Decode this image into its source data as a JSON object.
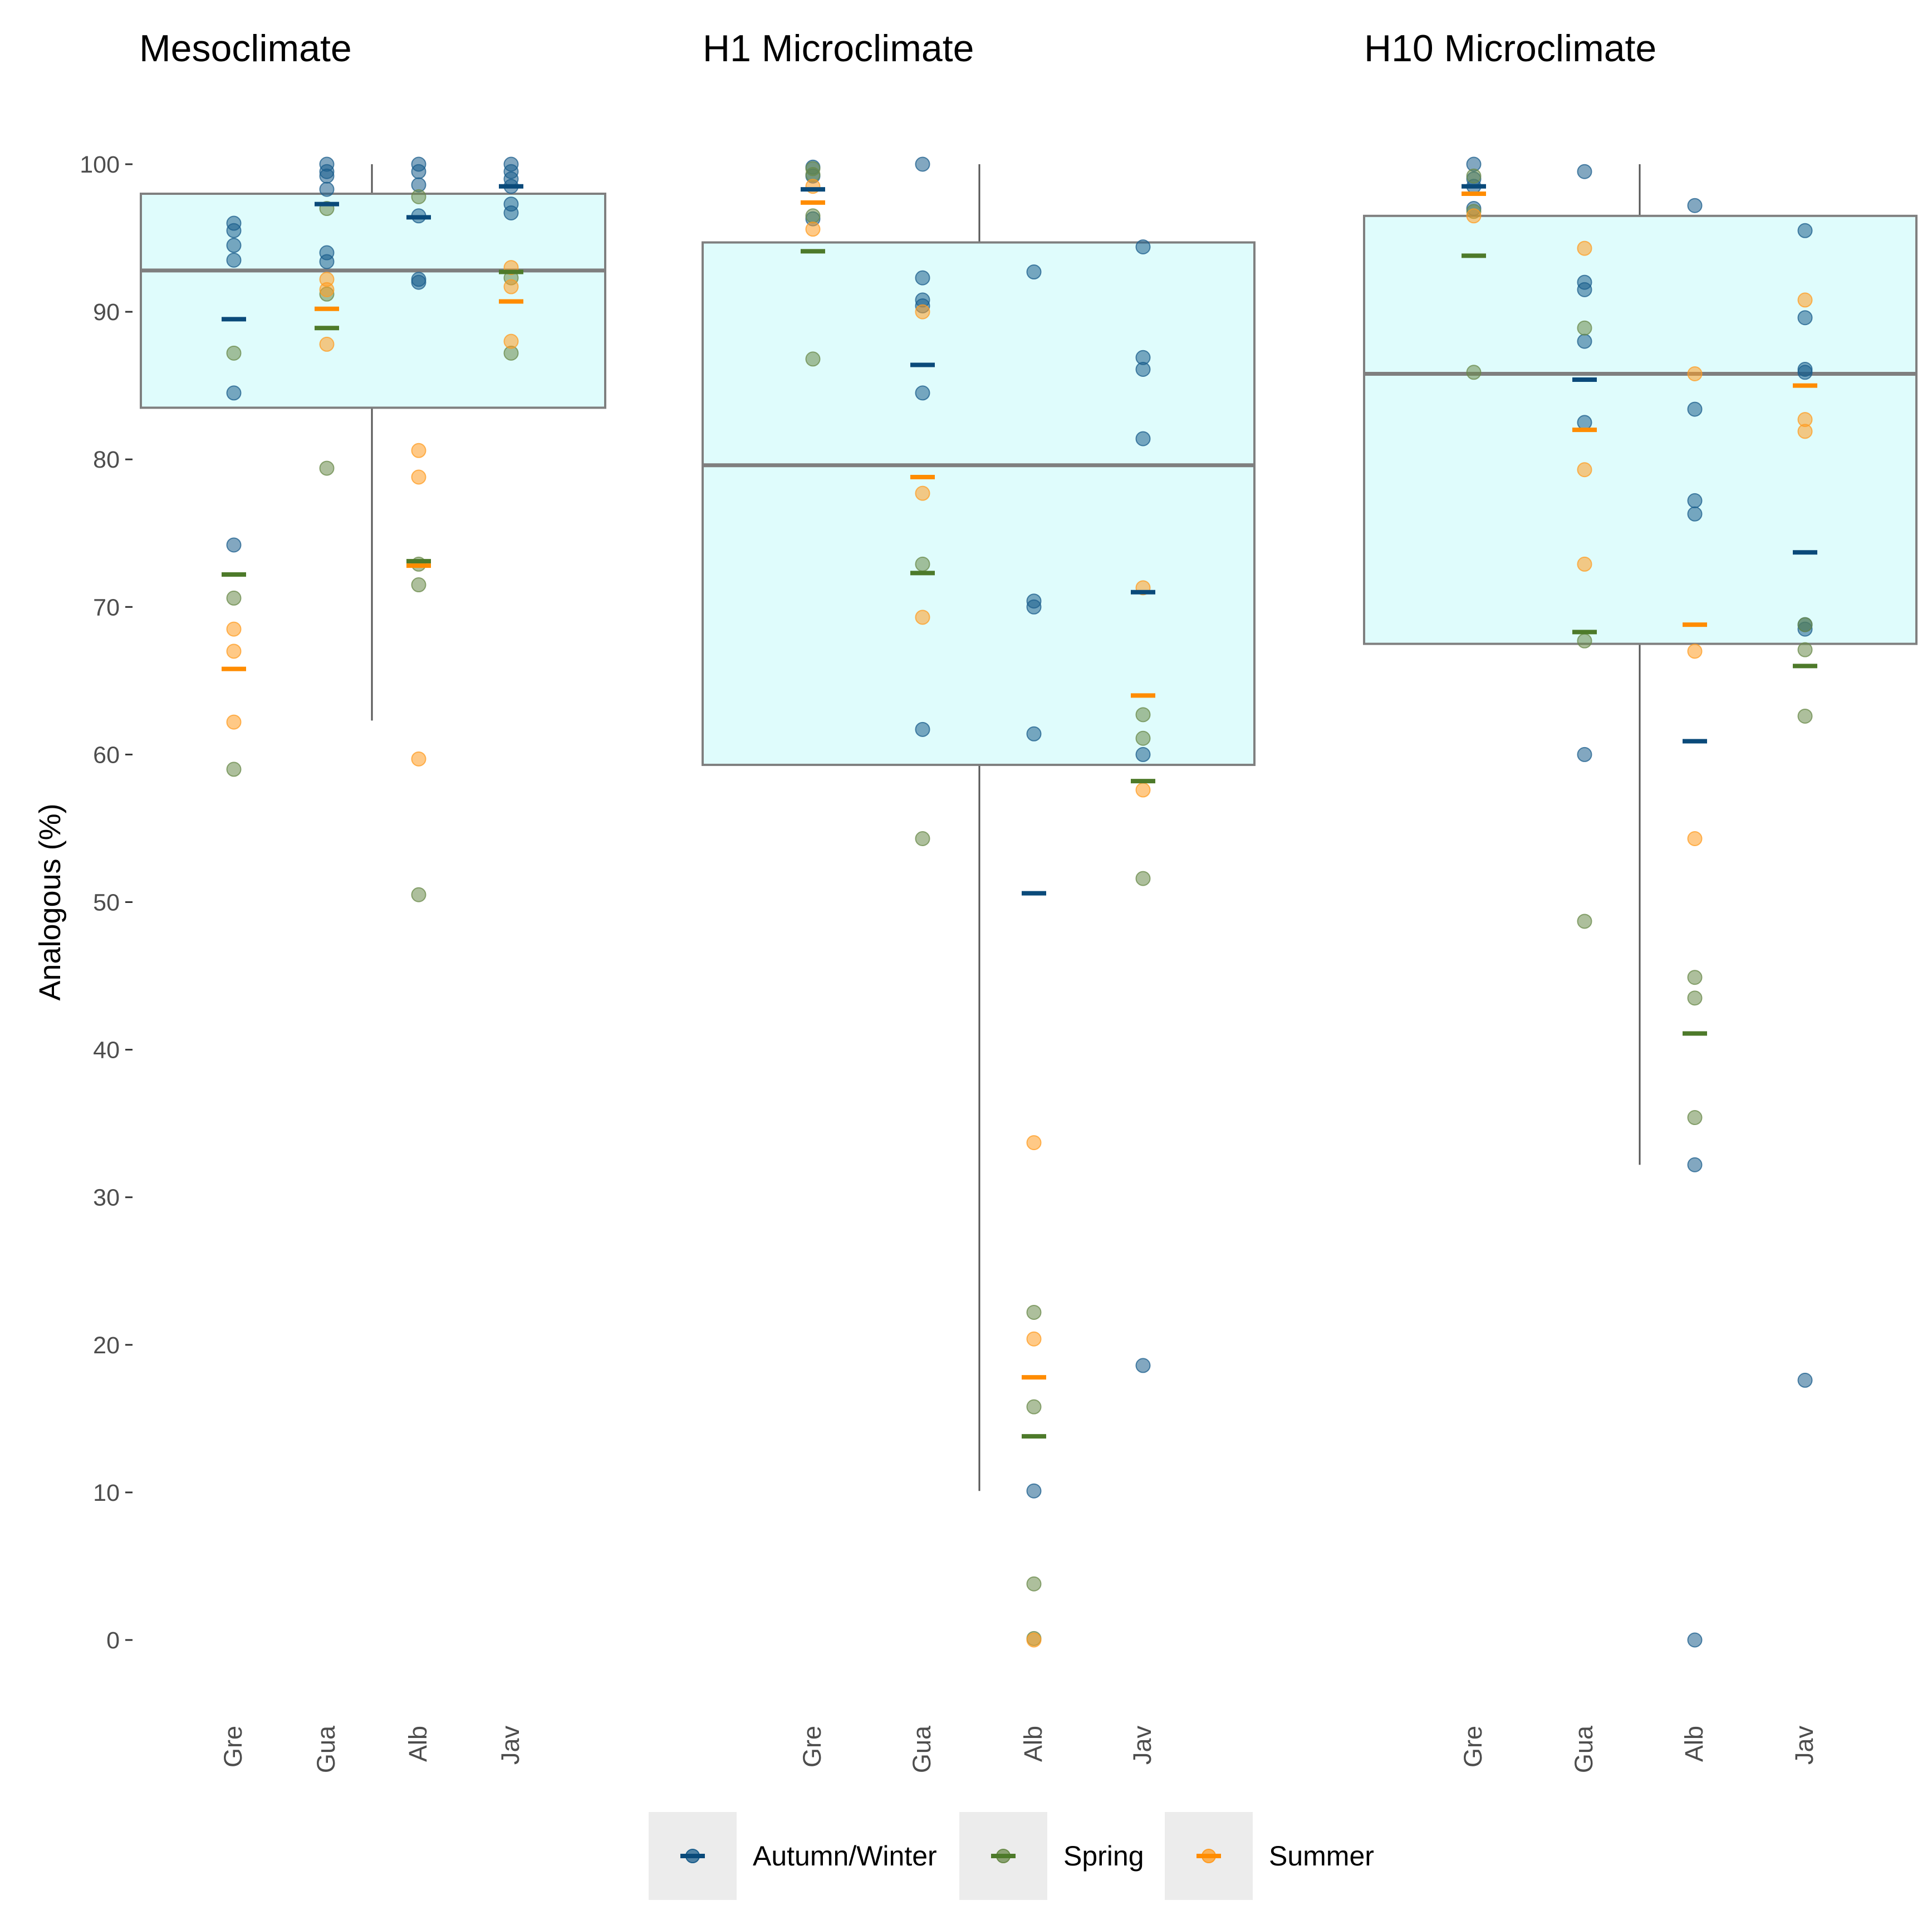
{
  "chart_data": {
    "type": "scatter",
    "ylabel": "Analogous (%)",
    "ylim": [
      0,
      100
    ],
    "yticks": [
      0,
      10,
      20,
      30,
      40,
      50,
      60,
      70,
      80,
      90,
      100
    ],
    "categories": [
      "Gre",
      "Gua",
      "Alb",
      "Jav"
    ],
    "colors": {
      "Autumn/Winter": "#1b5e8c",
      "Spring": "#6a8a4a",
      "Summer": "#ff9c22"
    },
    "mean_colors": {
      "Autumn/Winter": "#0a4a7a",
      "Spring": "#4d7a2a",
      "Summer": "#ff8c00"
    },
    "box_fill": "#dffcfc",
    "box_stroke": "#7f7f7f",
    "legend": {
      "position": "bottom",
      "items": [
        {
          "label": "Autumn/Winter",
          "series": "Autumn/Winter"
        },
        {
          "label": "Spring",
          "series": "Spring"
        },
        {
          "label": "Summer",
          "series": "Summer"
        }
      ]
    },
    "panels": [
      {
        "title": "Mesoclimate",
        "box": {
          "low": 83.5,
          "median": 92.8,
          "high": 98,
          "whisker_low": 62.3,
          "whisker_high": 100
        },
        "series": [
          {
            "name": "Autumn/Winter",
            "points": [
              [
                0,
                96
              ],
              [
                0,
                95.5
              ],
              [
                0,
                94.5
              ],
              [
                0,
                93.5
              ],
              [
                0,
                84.5
              ],
              [
                0,
                74.2
              ],
              [
                1,
                100
              ],
              [
                1,
                99.5
              ],
              [
                1,
                99.2
              ],
              [
                1,
                98.3
              ],
              [
                1,
                94
              ],
              [
                1,
                93.4
              ],
              [
                2,
                100
              ],
              [
                2,
                99.5
              ],
              [
                2,
                98.6
              ],
              [
                2,
                96.5
              ],
              [
                2,
                92.2
              ],
              [
                2,
                92
              ],
              [
                3,
                100
              ],
              [
                3,
                99.5
              ],
              [
                3,
                99
              ],
              [
                3,
                98.5
              ],
              [
                3,
                97.3
              ],
              [
                3,
                96.7
              ]
            ],
            "means": [
              89.5,
              97.3,
              96.4,
              98.5
            ]
          },
          {
            "name": "Spring",
            "points": [
              [
                0,
                87.2
              ],
              [
                0,
                70.6
              ],
              [
                0,
                59
              ],
              [
                1,
                97
              ],
              [
                1,
                91.2
              ],
              [
                1,
                79.4
              ],
              [
                2,
                97.8
              ],
              [
                2,
                72.9
              ],
              [
                2,
                71.5
              ],
              [
                2,
                50.5
              ],
              [
                3,
                92.3
              ],
              [
                3,
                87.2
              ]
            ],
            "means": [
              72.2,
              88.9,
              73.1,
              92.7
            ]
          },
          {
            "name": "Summer",
            "points": [
              [
                0,
                68.5
              ],
              [
                0,
                67
              ],
              [
                0,
                62.2
              ],
              [
                1,
                92.2
              ],
              [
                1,
                91.5
              ],
              [
                1,
                87.8
              ],
              [
                2,
                80.6
              ],
              [
                2,
                78.8
              ],
              [
                2,
                59.7
              ],
              [
                3,
                93
              ],
              [
                3,
                91.7
              ],
              [
                3,
                88
              ]
            ],
            "means": [
              65.8,
              90.2,
              72.8,
              90.7
            ]
          }
        ]
      },
      {
        "title": "H1 Microclimate",
        "box": {
          "low": 59.3,
          "median": 79.6,
          "high": 94.7,
          "whisker_low": 10.1,
          "whisker_high": 100
        },
        "series": [
          {
            "name": "Autumn/Winter",
            "points": [
              [
                0,
                99.8
              ],
              [
                0,
                99.2
              ],
              [
                0,
                96.3
              ],
              [
                1,
                100
              ],
              [
                1,
                92.3
              ],
              [
                1,
                90.8
              ],
              [
                1,
                90.4
              ],
              [
                1,
                84.5
              ],
              [
                1,
                61.7
              ],
              [
                2,
                92.7
              ],
              [
                2,
                70.4
              ],
              [
                2,
                70
              ],
              [
                2,
                61.4
              ],
              [
                2,
                10.1
              ],
              [
                3,
                94.4
              ],
              [
                3,
                86.9
              ],
              [
                3,
                86.1
              ],
              [
                3,
                81.4
              ],
              [
                3,
                60
              ],
              [
                3,
                18.6
              ]
            ],
            "means": [
              98.3,
              86.4,
              50.6,
              71
            ]
          },
          {
            "name": "Spring",
            "points": [
              [
                0,
                99.7
              ],
              [
                0,
                99.3
              ],
              [
                0,
                96.5
              ],
              [
                0,
                86.8
              ],
              [
                1,
                72.9
              ],
              [
                1,
                54.3
              ],
              [
                2,
                22.2
              ],
              [
                2,
                15.8
              ],
              [
                2,
                3.8
              ],
              [
                2,
                0.1
              ],
              [
                3,
                62.7
              ],
              [
                3,
                61.1
              ],
              [
                3,
                51.6
              ]
            ],
            "means": [
              94.1,
              72.3,
              13.8,
              58.2
            ]
          },
          {
            "name": "Summer",
            "points": [
              [
                0,
                98.5
              ],
              [
                0,
                95.6
              ],
              [
                1,
                90
              ],
              [
                1,
                77.7
              ],
              [
                1,
                69.3
              ],
              [
                2,
                33.7
              ],
              [
                2,
                20.4
              ],
              [
                2,
                0
              ],
              [
                3,
                71.3
              ],
              [
                3,
                57.6
              ]
            ],
            "means": [
              97.4,
              78.8,
              17.8,
              64
            ]
          }
        ]
      },
      {
        "title": "H10 Microclimate",
        "box": {
          "low": 67.5,
          "median": 85.8,
          "high": 96.5,
          "whisker_low": 32.2,
          "whisker_high": 100
        },
        "series": [
          {
            "name": "Autumn/Winter",
            "points": [
              [
                0,
                100
              ],
              [
                0,
                99
              ],
              [
                0,
                98.5
              ],
              [
                0,
                97
              ],
              [
                1,
                99.5
              ],
              [
                1,
                92
              ],
              [
                1,
                91.5
              ],
              [
                1,
                88
              ],
              [
                1,
                82.5
              ],
              [
                1,
                60
              ],
              [
                2,
                97.2
              ],
              [
                2,
                83.4
              ],
              [
                2,
                77.2
              ],
              [
                2,
                76.3
              ],
              [
                2,
                32.2
              ],
              [
                2,
                0
              ],
              [
                3,
                95.5
              ],
              [
                3,
                89.6
              ],
              [
                3,
                86.1
              ],
              [
                3,
                85.9
              ],
              [
                3,
                68.8
              ],
              [
                3,
                68.5
              ],
              [
                3,
                17.6
              ]
            ],
            "means": [
              98.5,
              85.4,
              60.9,
              73.7
            ]
          },
          {
            "name": "Spring",
            "points": [
              [
                0,
                99.2
              ],
              [
                0,
                96.8
              ],
              [
                0,
                85.9
              ],
              [
                1,
                88.9
              ],
              [
                1,
                67.7
              ],
              [
                1,
                48.7
              ],
              [
                2,
                44.9
              ],
              [
                2,
                43.5
              ],
              [
                2,
                35.4
              ],
              [
                3,
                68.8
              ],
              [
                3,
                67.1
              ],
              [
                3,
                62.6
              ]
            ],
            "means": [
              93.8,
              68.3,
              41.1,
              66
            ]
          },
          {
            "name": "Summer",
            "points": [
              [
                0,
                96.5
              ],
              [
                1,
                94.3
              ],
              [
                1,
                79.3
              ],
              [
                1,
                72.9
              ],
              [
                2,
                85.8
              ],
              [
                2,
                67
              ],
              [
                2,
                54.3
              ],
              [
                3,
                90.8
              ],
              [
                3,
                82.7
              ],
              [
                3,
                81.9
              ]
            ],
            "means": [
              98,
              82,
              68.8,
              85
            ]
          }
        ]
      }
    ]
  }
}
